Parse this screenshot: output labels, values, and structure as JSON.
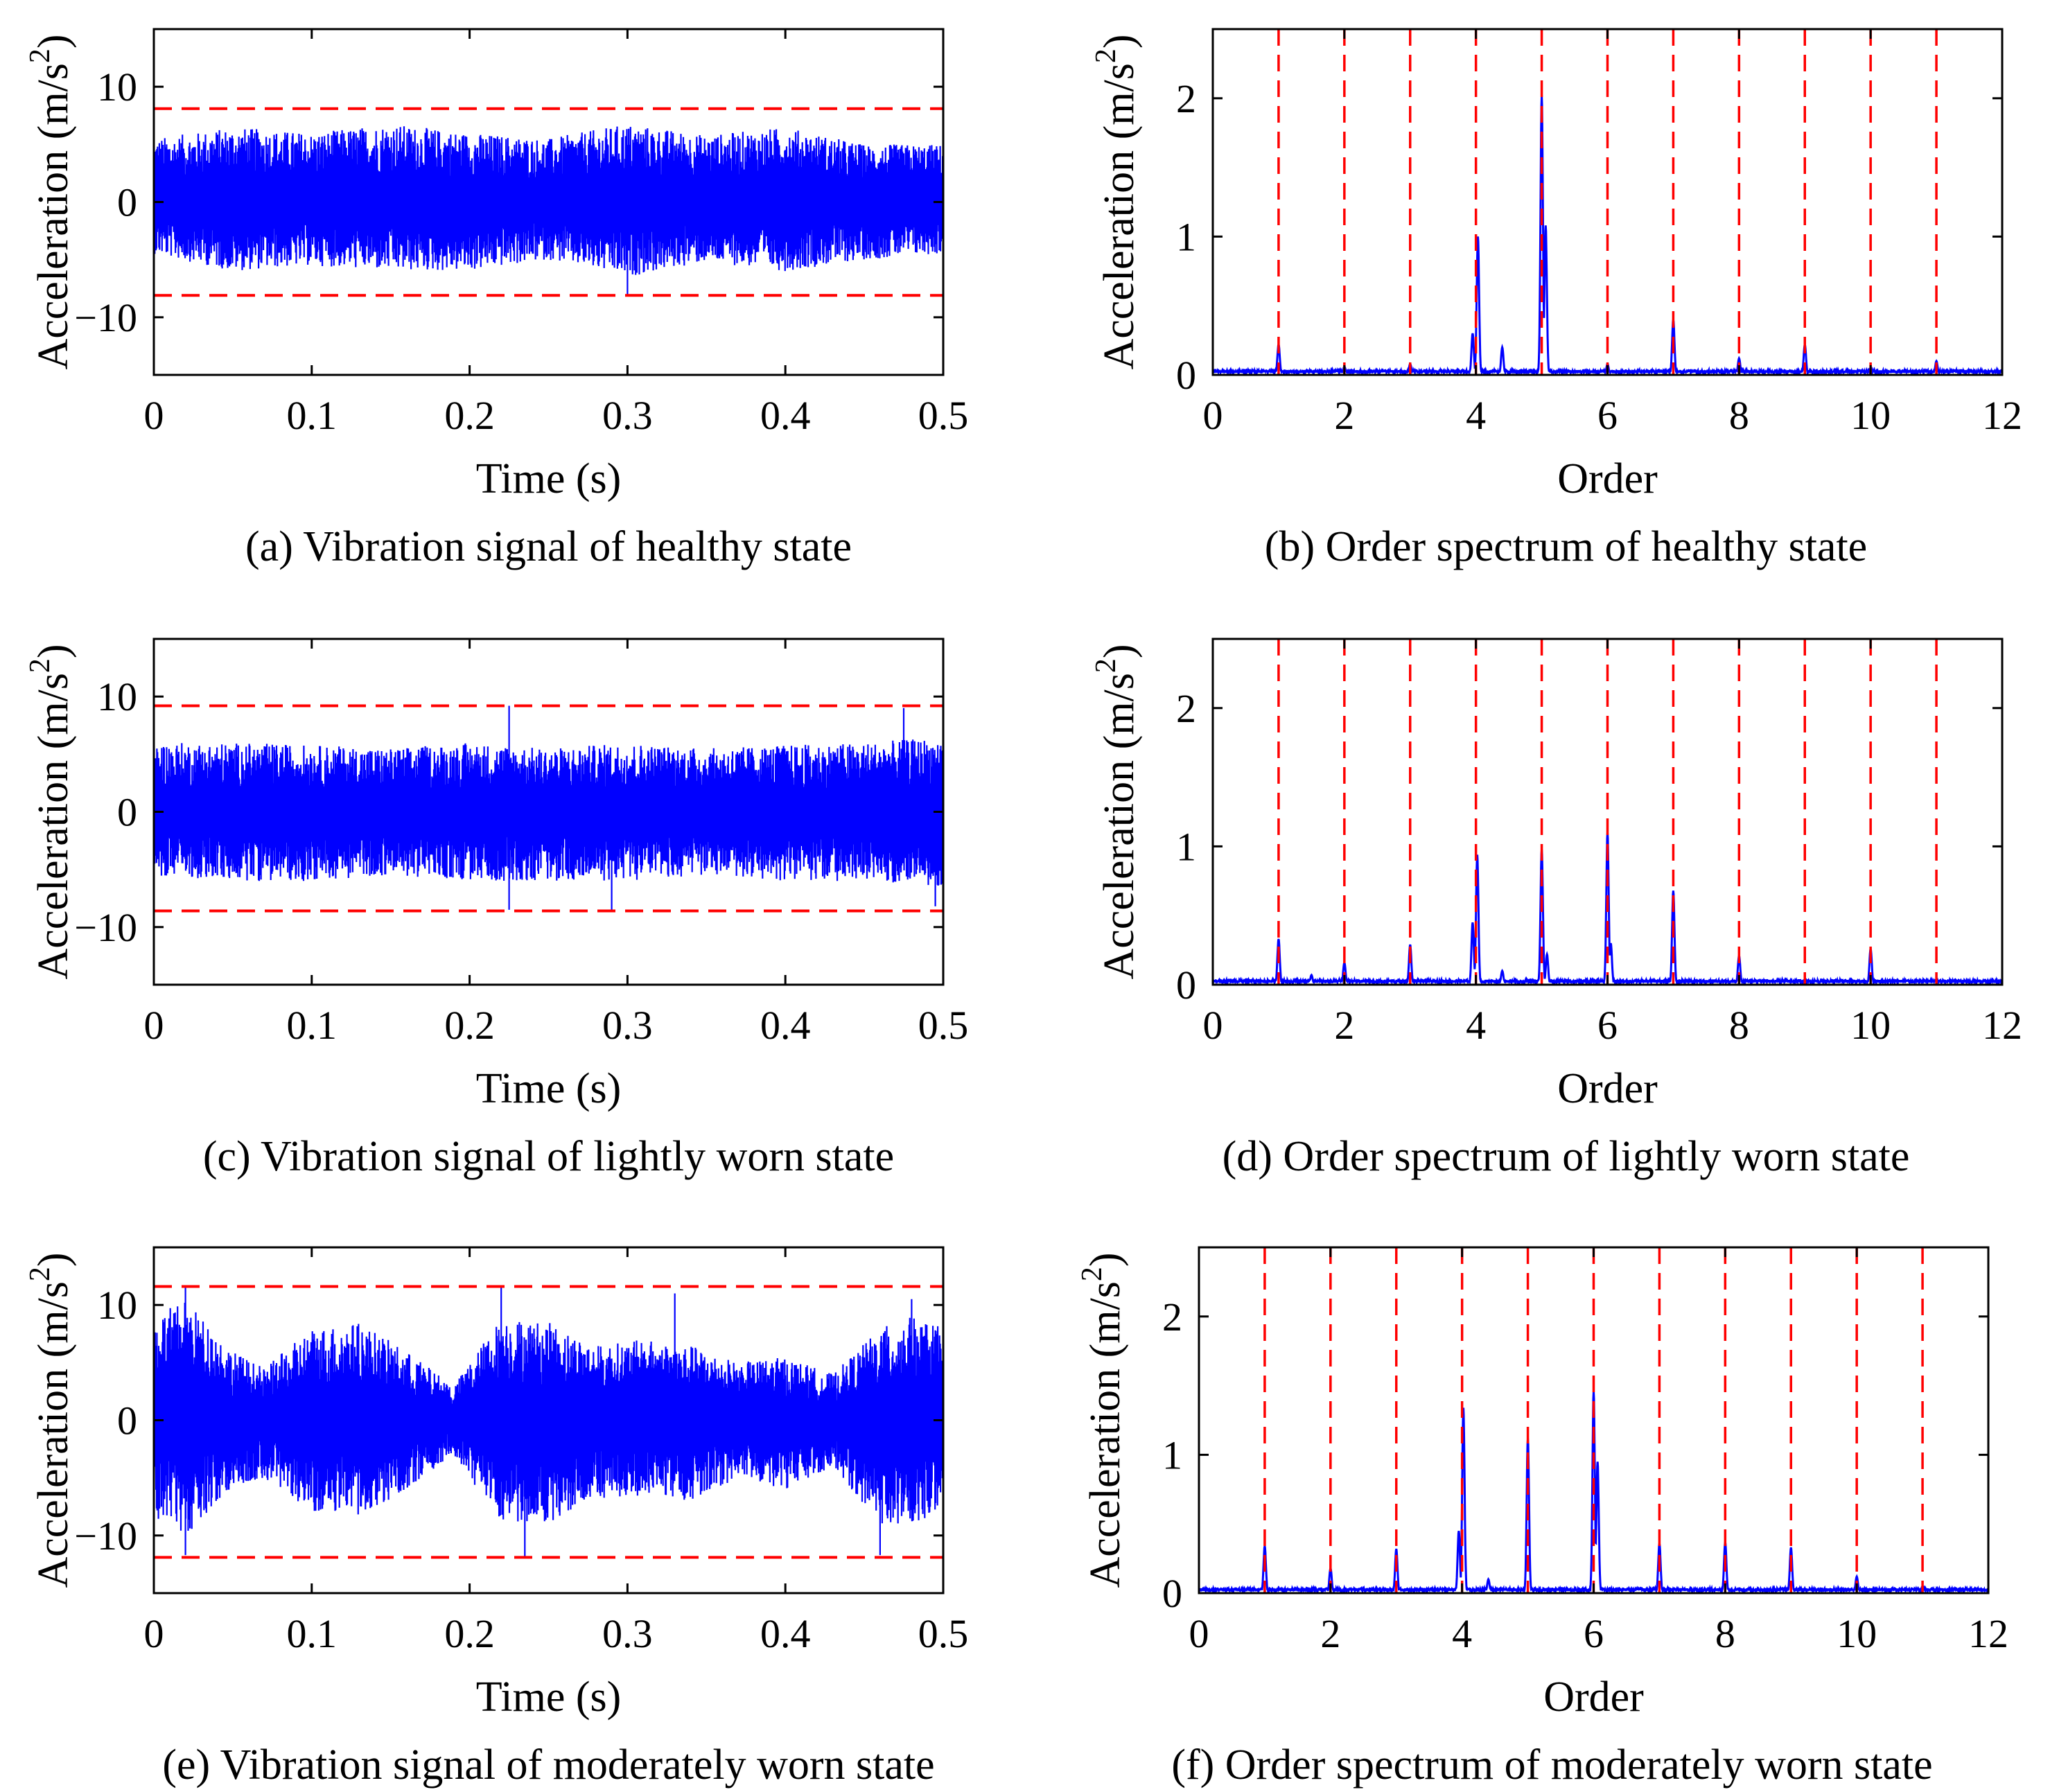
{
  "chart_data": [
    {
      "id": "a",
      "type": "line",
      "signal": "time",
      "caption": "(a) Vibration signal of healthy state",
      "xlabel": "Time (s)",
      "ylabel": "Acceleration (m/s2)",
      "xlim": [
        0,
        0.5
      ],
      "ylim": [
        -15,
        15
      ],
      "xticks": [
        "0",
        "0.1",
        "0.2",
        "0.3",
        "0.4",
        "0.5"
      ],
      "yticks": [
        "-10",
        "0",
        "10"
      ],
      "thresholds": [
        8.1,
        -8.1
      ],
      "envelope": {
        "x": [
          0,
          0.05,
          0.1,
          0.15,
          0.2,
          0.25,
          0.3,
          0.35,
          0.4,
          0.45,
          0.5
        ],
        "upper": [
          5.5,
          6.5,
          6,
          6.8,
          6,
          5.5,
          6.8,
          5.8,
          6.5,
          5,
          5
        ],
        "lower": [
          -4.5,
          -6,
          -5.5,
          -6,
          -6,
          -5,
          -6.5,
          -5.2,
          -6,
          -5,
          -4.5
        ]
      },
      "peaks": [
        {
          "x": 0.3,
          "y": -8.0
        }
      ],
      "series": [
        {
          "values_note": "",
          "color": "#0000ff"
        }
      ],
      "grid": false
    },
    {
      "id": "b",
      "type": "line",
      "signal": "spectrum",
      "caption": "(b) Order spectrum of healthy state",
      "xlabel": "Order",
      "ylabel": "Acceleration (m/s2)",
      "xlim": [
        0,
        12
      ],
      "ylim": [
        0,
        2.5
      ],
      "xticks": [
        "0",
        "2",
        "4",
        "6",
        "8",
        "10",
        "12"
      ],
      "yticks": [
        "0",
        "1",
        "2"
      ],
      "order_lines": [
        1,
        2,
        3,
        4,
        5,
        6,
        7,
        8,
        9,
        10,
        11
      ],
      "peaks": [
        {
          "x": 1,
          "y": 0.22
        },
        {
          "x": 2,
          "y": 0.06
        },
        {
          "x": 3,
          "y": 0.08
        },
        {
          "x": 3.95,
          "y": 0.3
        },
        {
          "x": 4.03,
          "y": 1.0
        },
        {
          "x": 4.4,
          "y": 0.2
        },
        {
          "x": 5.0,
          "y": 2.02
        },
        {
          "x": 5.06,
          "y": 1.08
        },
        {
          "x": 6,
          "y": 0.08
        },
        {
          "x": 7,
          "y": 0.4
        },
        {
          "x": 8,
          "y": 0.12
        },
        {
          "x": 9,
          "y": 0.22
        },
        {
          "x": 10,
          "y": 0.05
        },
        {
          "x": 11,
          "y": 0.1
        }
      ],
      "grid": false
    },
    {
      "id": "c",
      "type": "line",
      "signal": "time",
      "caption": "(c) Vibration signal of lightly worn state",
      "xlabel": "Time (s)",
      "ylabel": "Acceleration (m/s2)",
      "xlim": [
        0,
        0.5
      ],
      "ylim": [
        -15,
        15
      ],
      "xticks": [
        "0",
        "0.1",
        "0.2",
        "0.3",
        "0.4",
        "0.5"
      ],
      "yticks": [
        "-10",
        "0",
        "10"
      ],
      "thresholds": [
        9.2,
        -8.6
      ],
      "envelope": {
        "x": [
          0,
          0.05,
          0.1,
          0.15,
          0.2,
          0.25,
          0.3,
          0.35,
          0.4,
          0.45,
          0.5
        ],
        "upper": [
          6,
          6,
          5.8,
          5.5,
          6,
          5.5,
          6,
          5.5,
          5.8,
          6,
          6.5
        ],
        "lower": [
          -5.5,
          -6,
          -6,
          -5.5,
          -6,
          -6,
          -6,
          -5.5,
          -6,
          -6,
          -6.5
        ]
      },
      "peaks": [
        {
          "x": 0.225,
          "y": 9.2
        },
        {
          "x": 0.225,
          "y": -8.5
        },
        {
          "x": 0.29,
          "y": -8.5
        },
        {
          "x": 0.475,
          "y": 9.0
        },
        {
          "x": 0.495,
          "y": -8.2
        }
      ],
      "series": [
        {
          "values_note": "",
          "color": "#0000ff"
        }
      ],
      "grid": false
    },
    {
      "id": "d",
      "type": "line",
      "signal": "spectrum",
      "caption": "(d) Order spectrum of lightly worn state",
      "xlabel": "Order",
      "ylabel": "Acceleration (m/s2)",
      "xlim": [
        0,
        12
      ],
      "ylim": [
        0,
        2.5
      ],
      "xticks": [
        "0",
        "2",
        "4",
        "6",
        "8",
        "10",
        "12"
      ],
      "yticks": [
        "0",
        "1",
        "2"
      ],
      "order_lines": [
        1,
        2,
        3,
        4,
        5,
        6,
        7,
        8,
        9,
        10,
        11
      ],
      "peaks": [
        {
          "x": 1,
          "y": 0.33
        },
        {
          "x": 1.5,
          "y": 0.07
        },
        {
          "x": 2,
          "y": 0.16
        },
        {
          "x": 3,
          "y": 0.29
        },
        {
          "x": 3.95,
          "y": 0.45
        },
        {
          "x": 4.02,
          "y": 0.94
        },
        {
          "x": 4.4,
          "y": 0.1
        },
        {
          "x": 5.0,
          "y": 0.98
        },
        {
          "x": 5.08,
          "y": 0.22
        },
        {
          "x": 6.0,
          "y": 1.1
        },
        {
          "x": 6.05,
          "y": 0.3
        },
        {
          "x": 7,
          "y": 0.68
        },
        {
          "x": 8,
          "y": 0.21
        },
        {
          "x": 9,
          "y": 0.03
        },
        {
          "x": 10,
          "y": 0.26
        },
        {
          "x": 11,
          "y": 0.03
        }
      ],
      "grid": false
    },
    {
      "id": "e",
      "type": "line",
      "signal": "time",
      "caption": "(e) Vibration signal of moderately worn state",
      "xlabel": "Time (s)",
      "ylabel": "Acceleration (m/s2)",
      "xlim": [
        0,
        0.5
      ],
      "ylim": [
        -15,
        15
      ],
      "xticks": [
        "0",
        "0.1",
        "0.2",
        "0.3",
        "0.4",
        "0.5"
      ],
      "yticks": [
        "-10",
        "0",
        "10"
      ],
      "thresholds": [
        11.6,
        -11.9
      ],
      "envelope": {
        "x": [
          0,
          0.02,
          0.05,
          0.07,
          0.1,
          0.13,
          0.16,
          0.19,
          0.22,
          0.25,
          0.28,
          0.31,
          0.34,
          0.37,
          0.4,
          0.43,
          0.46,
          0.48,
          0.5
        ],
        "upper": [
          9,
          10.5,
          6,
          4.5,
          8,
          8.5,
          6,
          3,
          9,
          8.5,
          6.5,
          7,
          6.5,
          5,
          5.5,
          4,
          8,
          9,
          8
        ],
        "lower": [
          -9,
          -10,
          -6,
          -5,
          -8,
          -8.5,
          -6,
          -3,
          -9,
          -9,
          -7,
          -6.5,
          -7,
          -5,
          -6,
          -4,
          -9,
          -9,
          -8
        ]
      },
      "peaks": [
        {
          "x": 0.02,
          "y": 11.5
        },
        {
          "x": 0.02,
          "y": -11.7
        },
        {
          "x": 0.22,
          "y": 11.6
        },
        {
          "x": 0.235,
          "y": -11.8
        },
        {
          "x": 0.33,
          "y": 11.0
        },
        {
          "x": 0.46,
          "y": -11.7
        },
        {
          "x": 0.48,
          "y": 10.5
        }
      ],
      "series": [
        {
          "values_note": "",
          "color": "#0000ff"
        }
      ],
      "grid": false
    },
    {
      "id": "f",
      "type": "line",
      "signal": "spectrum",
      "caption": "(f) Order spectrum of moderately worn state",
      "xlabel": "Order",
      "ylabel": "Acceleration (m/s2)",
      "xlim": [
        0,
        12
      ],
      "ylim": [
        0,
        2.5
      ],
      "xticks": [
        "0",
        "2",
        "4",
        "6",
        "8",
        "10",
        "12"
      ],
      "yticks": [
        "0",
        "1",
        "2"
      ],
      "order_lines": [
        1,
        2,
        3,
        4,
        5,
        6,
        7,
        8,
        9,
        10,
        11
      ],
      "peaks": [
        {
          "x": 1,
          "y": 0.34
        },
        {
          "x": 2,
          "y": 0.18
        },
        {
          "x": 3,
          "y": 0.32
        },
        {
          "x": 3.95,
          "y": 0.45
        },
        {
          "x": 4.02,
          "y": 1.34
        },
        {
          "x": 4.4,
          "y": 0.1
        },
        {
          "x": 5.0,
          "y": 1.12
        },
        {
          "x": 6.0,
          "y": 1.46
        },
        {
          "x": 6.06,
          "y": 0.95
        },
        {
          "x": 7,
          "y": 0.36
        },
        {
          "x": 8,
          "y": 0.37
        },
        {
          "x": 9,
          "y": 0.33
        },
        {
          "x": 10,
          "y": 0.12
        },
        {
          "x": 11,
          "y": 0.05
        }
      ],
      "grid": false
    }
  ],
  "colors": {
    "signal": "#0000ff",
    "threshold": "#ff0000",
    "axis": "#000000"
  }
}
